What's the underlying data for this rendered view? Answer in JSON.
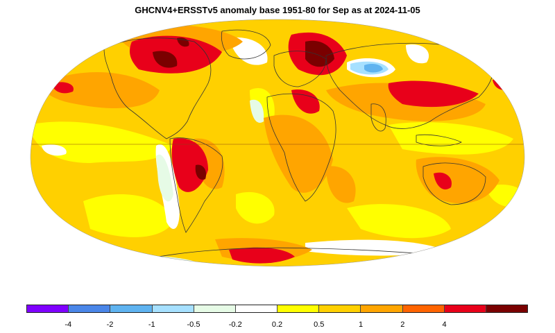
{
  "title": "GHCNV4+ERSSTv5 anomaly base 1951-80 for Sep as at 2024-11-05",
  "legend": {
    "colors": [
      "#7f00ff",
      "#4a86e8",
      "#5fb3f0",
      "#a6e0ff",
      "#e6fbe6",
      "#ffffff",
      "#ffff00",
      "#ffd000",
      "#ffa500",
      "#ff6400",
      "#e8001a",
      "#7a0000"
    ],
    "labels": [
      "-4",
      "-2",
      "-1",
      "-0.5",
      "-0.2",
      "0.2",
      "0.5",
      "1",
      "2",
      "4"
    ]
  },
  "map": {
    "projection": "robinson",
    "base_color": "#ffd000"
  }
}
